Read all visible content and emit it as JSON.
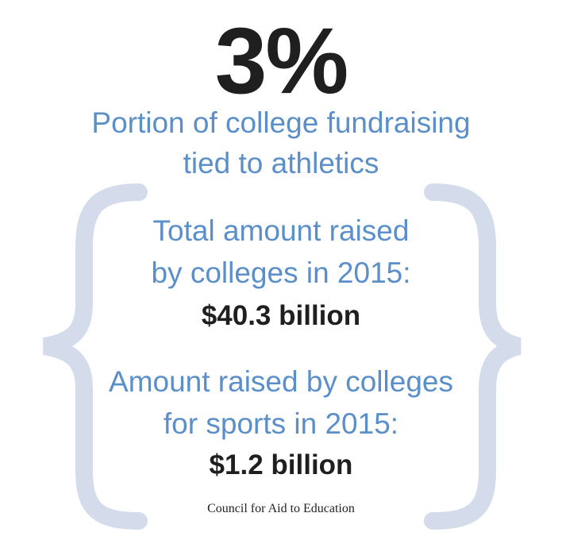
{
  "headline": {
    "value": "3%",
    "caption": [
      "Portion of college fundraising",
      "tied to athletics"
    ]
  },
  "stats": [
    {
      "label": [
        "Total amount raised",
        "by colleges in 2015:"
      ],
      "amount": "$40.3 billion"
    },
    {
      "label": [
        "Amount raised by colleges",
        "for sports in 2015:"
      ],
      "amount": "$1.2 billion"
    }
  ],
  "source": "Council for Aid to Education"
}
